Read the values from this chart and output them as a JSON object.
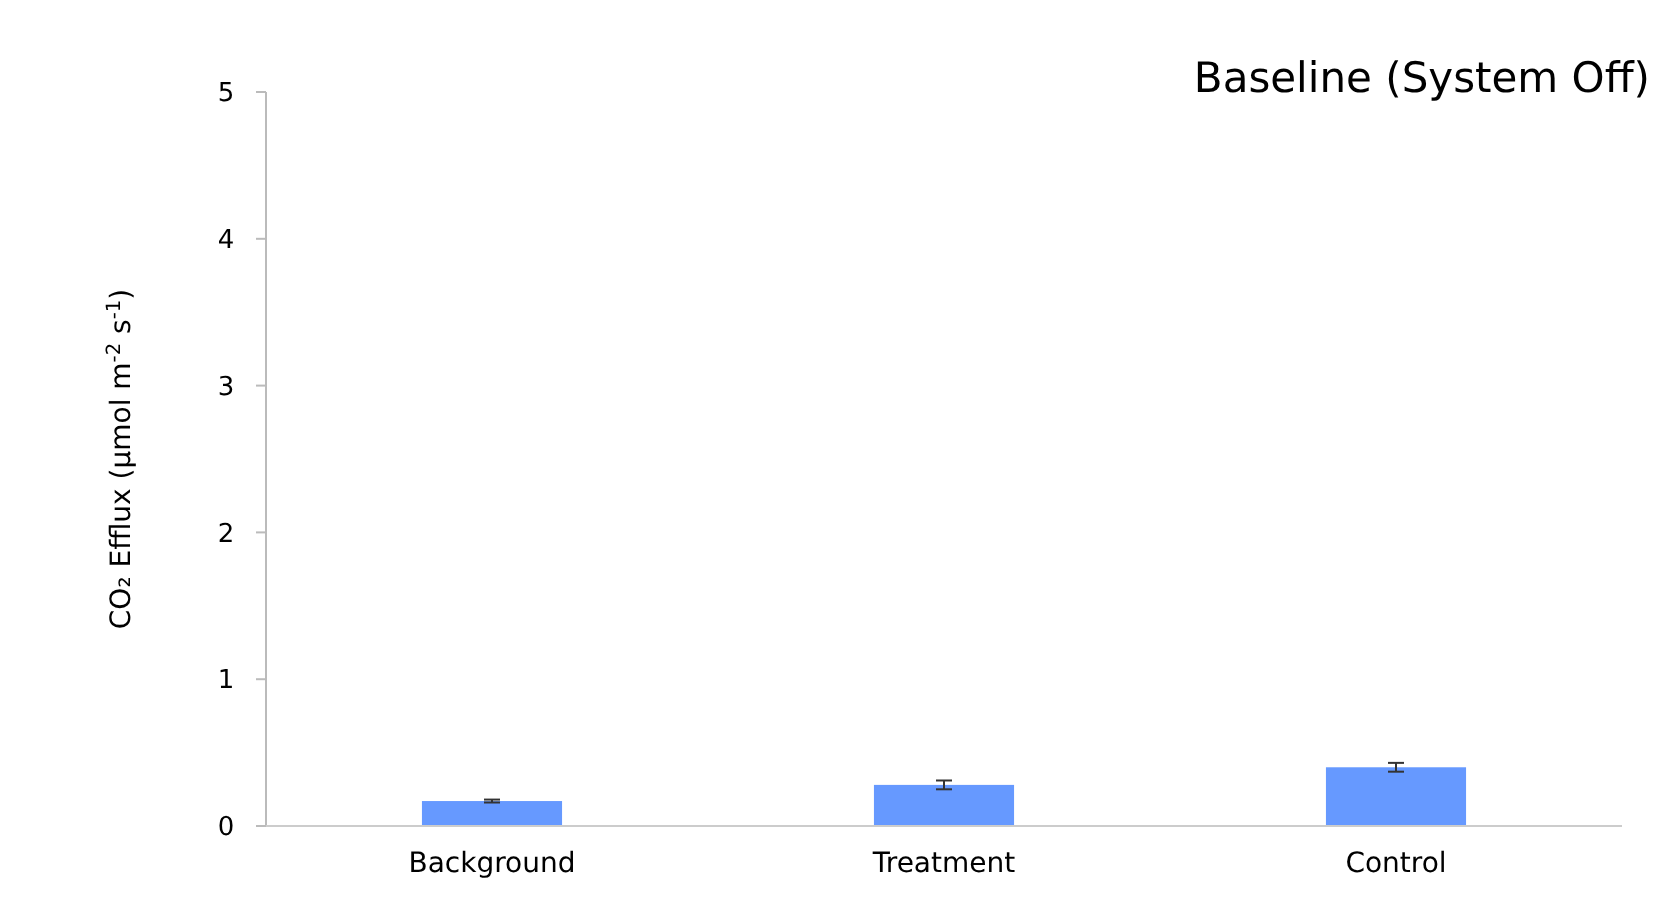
{
  "chart_data": {
    "type": "bar",
    "title": "Baseline (System Off)",
    "ylabel": "CO₂ Efflux (µmol m$^{-2}$ s$^{-1}$)",
    "categories": [
      "Background",
      "Treatment",
      "Control"
    ],
    "values": [
      0.17,
      0.28,
      0.4
    ],
    "errors": [
      0.01,
      0.03,
      0.03
    ],
    "color": "#6699ff",
    "ylim": [
      0,
      5
    ],
    "yticks": [
      0,
      1,
      2,
      3,
      4,
      5
    ],
    "grid": false
  }
}
